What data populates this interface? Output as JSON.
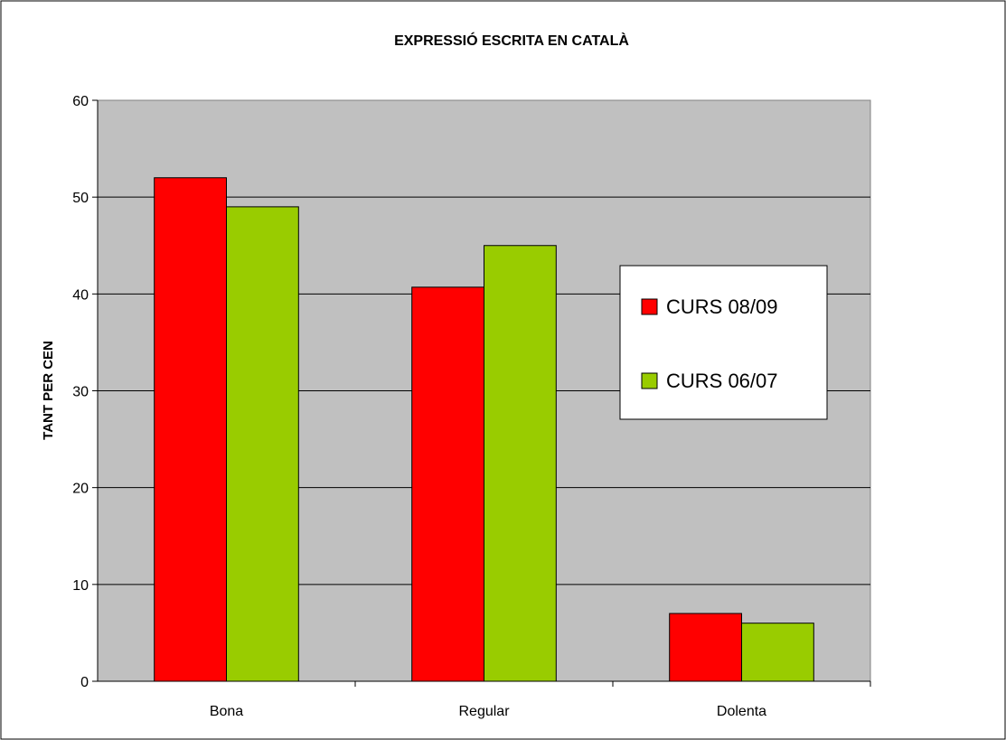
{
  "chart_data": {
    "type": "bar",
    "title": "EXPRESSIÓ ESCRITA EN CATALÀ",
    "ylabel": "TANT PER CENT",
    "ylabel_visible": "TANT PER CEN",
    "xlabel": "",
    "categories": [
      "Bona",
      "Regular",
      "Dolenta"
    ],
    "series": [
      {
        "name": "CURS 08/09",
        "color": "#ff0000",
        "values": [
          52,
          40.7,
          7
        ]
      },
      {
        "name": "CURS 06/07",
        "color": "#99cc00",
        "values": [
          49,
          45,
          6
        ]
      }
    ],
    "ylim": [
      0,
      60
    ],
    "yticks": [
      0,
      10,
      20,
      30,
      40,
      50,
      60
    ],
    "grid": true,
    "plot_background": "#c0c0c0",
    "legend_position": "right"
  }
}
